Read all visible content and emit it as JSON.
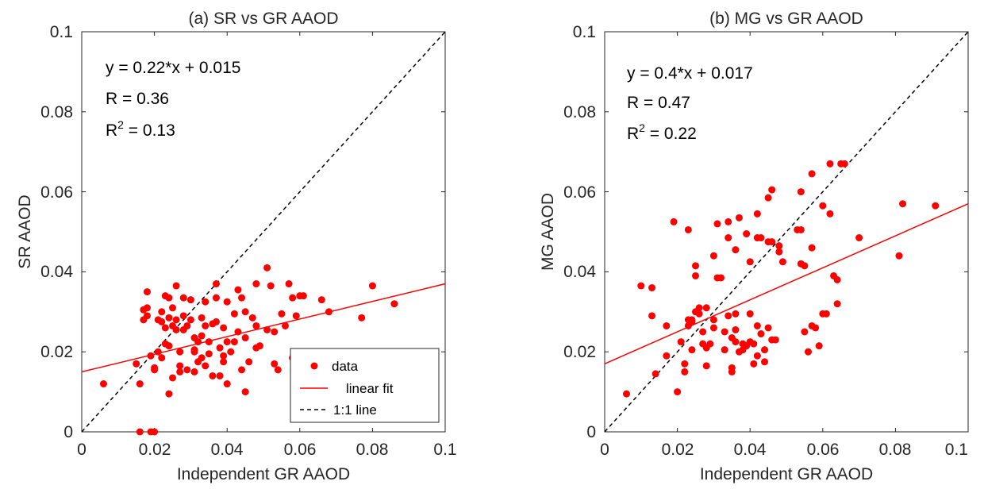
{
  "chart_data": [
    {
      "type": "scatter",
      "title": "(a) SR vs GR AAOD",
      "xlabel": "Independent GR AAOD",
      "ylabel": "SR AAOD",
      "xlim": [
        0,
        0.1
      ],
      "ylim": [
        0,
        0.1
      ],
      "xticks": [
        "0",
        "0.02",
        "0.04",
        "0.06",
        "0.08",
        "0.1"
      ],
      "yticks": [
        "0",
        "0.02",
        "0.04",
        "0.06",
        "0.08",
        "0.1"
      ],
      "annotations": {
        "equation": "y = 0.22*x + 0.015",
        "r": "R = 0.36",
        "r2_prefix": "R",
        "r2_sup": "2",
        "r2_value": " = 0.13"
      },
      "fit": {
        "slope": 0.22,
        "intercept": 0.015
      },
      "legend": {
        "location": "bottom-right",
        "entries": [
          "data",
          "linear fit",
          "1:1 line"
        ]
      },
      "colors": {
        "data": "#ff0000",
        "fit": "#ff0000",
        "identity": "#000000"
      },
      "points": [
        [
          0.006,
          0.012
        ],
        [
          0.015,
          0.017
        ],
        [
          0.016,
          0.012
        ],
        [
          0.016,
          0
        ],
        [
          0.017,
          0.028
        ],
        [
          0.017,
          0.0305
        ],
        [
          0.018,
          0.035
        ],
        [
          0.018,
          0.031
        ],
        [
          0.018,
          0.029
        ],
        [
          0.019,
          0.019
        ],
        [
          0.019,
          0
        ],
        [
          0.02,
          0.0155
        ],
        [
          0.02,
          0
        ],
        [
          0.02,
          0.016
        ],
        [
          0.021,
          0.028
        ],
        [
          0.021,
          0.02
        ],
        [
          0.022,
          0.0185
        ],
        [
          0.022,
          0.0275
        ],
        [
          0.022,
          0.03
        ],
        [
          0.023,
          0.034
        ],
        [
          0.023,
          0.022
        ],
        [
          0.023,
          0.026
        ],
        [
          0.024,
          0.0335
        ],
        [
          0.024,
          0.0095
        ],
        [
          0.024,
          0.0285
        ],
        [
          0.024,
          0.0215
        ],
        [
          0.025,
          0.0265
        ],
        [
          0.025,
          0.0135
        ],
        [
          0.025,
          0.031
        ],
        [
          0.026,
          0.0365
        ],
        [
          0.026,
          0.0255
        ],
        [
          0.026,
          0.028
        ],
        [
          0.027,
          0.0165
        ],
        [
          0.027,
          0.02
        ],
        [
          0.027,
          0.015
        ],
        [
          0.028,
          0.029
        ],
        [
          0.028,
          0.0335
        ],
        [
          0.028,
          0.0255
        ],
        [
          0.029,
          0.0265
        ],
        [
          0.029,
          0.0155
        ],
        [
          0.03,
          0.028
        ],
        [
          0.03,
          0.033
        ],
        [
          0.031,
          0.02
        ],
        [
          0.031,
          0.015
        ],
        [
          0.031,
          0.0205
        ],
        [
          0.031,
          0.0235
        ],
        [
          0.032,
          0.0175
        ],
        [
          0.032,
          0.0225
        ],
        [
          0.033,
          0.024
        ],
        [
          0.033,
          0.0285
        ],
        [
          0.033,
          0.0185
        ],
        [
          0.034,
          0.0325
        ],
        [
          0.034,
          0.0165
        ],
        [
          0.034,
          0.0265
        ],
        [
          0.035,
          0.0195
        ],
        [
          0.035,
          0.0225
        ],
        [
          0.036,
          0.027
        ],
        [
          0.036,
          0.014
        ],
        [
          0.037,
          0.037
        ],
        [
          0.037,
          0.0335
        ],
        [
          0.037,
          0.0275
        ],
        [
          0.038,
          0.014
        ],
        [
          0.038,
          0.021
        ],
        [
          0.039,
          0.019
        ],
        [
          0.039,
          0.026
        ],
        [
          0.039,
          0.0175
        ],
        [
          0.04,
          0.0225
        ],
        [
          0.04,
          0.012
        ],
        [
          0.04,
          0.0325
        ],
        [
          0.041,
          0.02
        ],
        [
          0.042,
          0.0225
        ],
        [
          0.042,
          0.0295
        ],
        [
          0.043,
          0.0355
        ],
        [
          0.043,
          0.025
        ],
        [
          0.044,
          0.0155
        ],
        [
          0.044,
          0.0335
        ],
        [
          0.045,
          0.03
        ],
        [
          0.045,
          0.0235
        ],
        [
          0.045,
          0.01
        ],
        [
          0.046,
          0.0175
        ],
        [
          0.047,
          0.0285
        ],
        [
          0.048,
          0.0265
        ],
        [
          0.048,
          0.037
        ],
        [
          0.048,
          0.021
        ],
        [
          0.049,
          0.0215
        ],
        [
          0.051,
          0.041
        ],
        [
          0.051,
          0.0255
        ],
        [
          0.052,
          0.0365
        ],
        [
          0.053,
          0.017
        ],
        [
          0.053,
          0.025
        ],
        [
          0.054,
          0.0155
        ],
        [
          0.055,
          0.0295
        ],
        [
          0.056,
          0.0265
        ],
        [
          0.057,
          0.037
        ],
        [
          0.058,
          0.0335
        ],
        [
          0.058,
          0.0185
        ],
        [
          0.059,
          0.029
        ],
        [
          0.06,
          0.034
        ],
        [
          0.061,
          0.034
        ],
        [
          0.066,
          0.033
        ],
        [
          0.068,
          0.03
        ],
        [
          0.077,
          0.0285
        ],
        [
          0.08,
          0.0365
        ],
        [
          0.086,
          0.032
        ]
      ]
    },
    {
      "type": "scatter",
      "title": "(b) MG vs GR AAOD",
      "xlabel": "Independent GR AAOD",
      "ylabel": "MG AAOD",
      "xlim": [
        0,
        0.1
      ],
      "ylim": [
        0,
        0.1
      ],
      "xticks": [
        "0",
        "0.02",
        "0.04",
        "0.06",
        "0.08",
        "0.1"
      ],
      "yticks": [
        "0",
        "0.02",
        "0.04",
        "0.06",
        "0.08",
        "0.1"
      ],
      "annotations": {
        "equation": "y = 0.4*x + 0.017",
        "r": "R = 0.47",
        "r2_prefix": "R",
        "r2_sup": "2",
        "r2_value": " = 0.22"
      },
      "fit": {
        "slope": 0.4,
        "intercept": 0.017
      },
      "colors": {
        "data": "#ff0000",
        "fit": "#ff0000",
        "identity": "#000000"
      },
      "points": [
        [
          0.006,
          0.0095
        ],
        [
          0.01,
          0.0365
        ],
        [
          0.013,
          0.036
        ],
        [
          0.013,
          0.029
        ],
        [
          0.014,
          0.0145
        ],
        [
          0.017,
          0.019
        ],
        [
          0.017,
          0.0265
        ],
        [
          0.019,
          0.0525
        ],
        [
          0.02,
          0.01
        ],
        [
          0.021,
          0.0225
        ],
        [
          0.022,
          0.015
        ],
        [
          0.022,
          0.017
        ],
        [
          0.023,
          0.0505
        ],
        [
          0.023,
          0.0265
        ],
        [
          0.023,
          0.028
        ],
        [
          0.024,
          0.0205
        ],
        [
          0.024,
          0.0275
        ],
        [
          0.024,
          0.028
        ],
        [
          0.025,
          0.0415
        ],
        [
          0.025,
          0.039
        ],
        [
          0.025,
          0.03
        ],
        [
          0.026,
          0.031
        ],
        [
          0.026,
          0.0295
        ],
        [
          0.027,
          0.025
        ],
        [
          0.027,
          0.022
        ],
        [
          0.028,
          0.031
        ],
        [
          0.028,
          0.021
        ],
        [
          0.028,
          0.0165
        ],
        [
          0.029,
          0.022
        ],
        [
          0.03,
          0.026
        ],
        [
          0.03,
          0.028
        ],
        [
          0.03,
          0.044
        ],
        [
          0.031,
          0.0385
        ],
        [
          0.031,
          0.052
        ],
        [
          0.032,
          0.0385
        ],
        [
          0.033,
          0.0205
        ],
        [
          0.033,
          0.025
        ],
        [
          0.034,
          0.0525
        ],
        [
          0.034,
          0.029
        ],
        [
          0.034,
          0.0485
        ],
        [
          0.035,
          0.016
        ],
        [
          0.035,
          0.015
        ],
        [
          0.035,
          0.0235
        ],
        [
          0.036,
          0.0255
        ],
        [
          0.036,
          0.0225
        ],
        [
          0.036,
          0.0455
        ],
        [
          0.036,
          0.0295
        ],
        [
          0.037,
          0.02
        ],
        [
          0.037,
          0.0535
        ],
        [
          0.038,
          0.022
        ],
        [
          0.038,
          0.0205
        ],
        [
          0.039,
          0.0495
        ],
        [
          0.039,
          0.0215
        ],
        [
          0.04,
          0.0295
        ],
        [
          0.04,
          0.0425
        ],
        [
          0.04,
          0.0225
        ],
        [
          0.041,
          0.017
        ],
        [
          0.041,
          0.022
        ],
        [
          0.042,
          0.019
        ],
        [
          0.042,
          0.0265
        ],
        [
          0.042,
          0.0545
        ],
        [
          0.042,
          0.0485
        ],
        [
          0.043,
          0.0485
        ],
        [
          0.043,
          0.0245
        ],
        [
          0.044,
          0.0205
        ],
        [
          0.044,
          0.0175
        ],
        [
          0.045,
          0.026
        ],
        [
          0.045,
          0.0475
        ],
        [
          0.045,
          0.0585
        ],
        [
          0.046,
          0.0605
        ],
        [
          0.046,
          0.023
        ],
        [
          0.046,
          0.0475
        ],
        [
          0.047,
          0.023
        ],
        [
          0.048,
          0.0465
        ],
        [
          0.048,
          0.045
        ],
        [
          0.049,
          0.0425
        ],
        [
          0.053,
          0.0505
        ],
        [
          0.054,
          0.0505
        ],
        [
          0.054,
          0.06
        ],
        [
          0.054,
          0.042
        ],
        [
          0.055,
          0.0415
        ],
        [
          0.055,
          0.025
        ],
        [
          0.056,
          0.02
        ],
        [
          0.057,
          0.0265
        ],
        [
          0.057,
          0.0645
        ],
        [
          0.057,
          0.046
        ],
        [
          0.058,
          0.026
        ],
        [
          0.059,
          0.0215
        ],
        [
          0.06,
          0.0295
        ],
        [
          0.06,
          0.0565
        ],
        [
          0.061,
          0.0295
        ],
        [
          0.062,
          0.0545
        ],
        [
          0.063,
          0.039
        ],
        [
          0.064,
          0.038
        ],
        [
          0.064,
          0.032
        ],
        [
          0.065,
          0.067
        ],
        [
          0.066,
          0.067
        ],
        [
          0.07,
          0.0485
        ],
        [
          0.081,
          0.044
        ],
        [
          0.082,
          0.057
        ],
        [
          0.091,
          0.0565
        ],
        [
          0.062,
          0.067
        ]
      ]
    }
  ]
}
